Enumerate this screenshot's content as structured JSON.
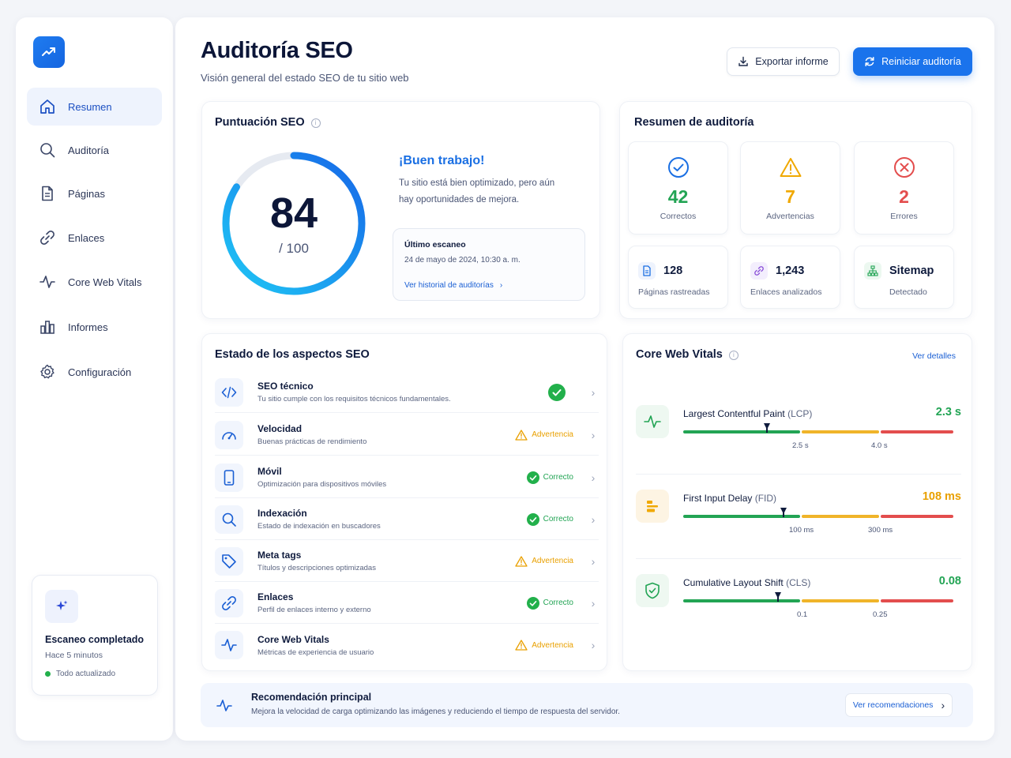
{
  "sidebar": {
    "items": [
      {
        "label": "Resumen",
        "icon": "home-icon",
        "active": true
      },
      {
        "label": "Auditoría",
        "icon": "search-icon"
      },
      {
        "label": "Páginas",
        "icon": "document-icon"
      },
      {
        "label": "Enlaces",
        "icon": "link-icon"
      },
      {
        "label": "Core Web Vitals",
        "icon": "pulse-icon"
      },
      {
        "label": "Informes",
        "icon": "bar-chart-icon"
      },
      {
        "label": "Configuración",
        "icon": "gear-icon"
      }
    ],
    "scan": {
      "title": "Escaneo completado",
      "time": "Hace 5 minutos",
      "status": "Todo actualizado"
    }
  },
  "header": {
    "title": "Auditoría SEO",
    "subtitle": "Visión general del estado SEO de tu sitio web",
    "export_label": "Exportar informe",
    "restart_label": "Reiniciar auditoría"
  },
  "score": {
    "title": "Puntuación SEO",
    "value": "84",
    "max": "/ 100",
    "fraction": 0.84,
    "headline": "¡Buen trabajo!",
    "message": "Tu sitio está bien optimizado, pero aún hay oportunidades de mejora.",
    "last_scan_label": "Último escaneo",
    "last_scan_date": "24 de mayo de 2024, 10:30 a. m.",
    "history_link": "Ver historial de auditorías"
  },
  "summary": {
    "title": "Resumen de auditoría",
    "counts": [
      {
        "value": "42",
        "label": "Correctos",
        "color": "#22a454",
        "icon": "check-circle-icon"
      },
      {
        "value": "7",
        "label": "Advertencias",
        "color": "#f0a800",
        "icon": "warning-icon"
      },
      {
        "value": "2",
        "label": "Errores",
        "color": "#e34d4d",
        "icon": "error-circle-icon"
      }
    ],
    "stats": [
      {
        "value": "128",
        "label": "Páginas rastreadas",
        "icon": "document-icon"
      },
      {
        "value": "1,243",
        "label": "Enlaces analizados",
        "icon": "link-icon"
      },
      {
        "value": "Sitemap",
        "label": "Detectado",
        "icon": "sitemap-icon"
      }
    ]
  },
  "aspects": {
    "title": "Estado de los aspectos SEO",
    "items": [
      {
        "name": "SEO técnico",
        "desc": "Tu sitio cumple con los requisitos técnicos fundamentales.",
        "status": "",
        "type": "ok-badge",
        "icon": "code-icon"
      },
      {
        "name": "Velocidad",
        "desc": "Buenas prácticas de rendimiento",
        "status": "Advertencia",
        "type": "warn",
        "icon": "speedometer-icon"
      },
      {
        "name": "Móvil",
        "desc": "Optimización para dispositivos móviles",
        "status": "Correcto",
        "type": "ok",
        "icon": "mobile-icon"
      },
      {
        "name": "Indexación",
        "desc": "Estado de indexación en buscadores",
        "status": "Correcto",
        "type": "ok",
        "icon": "search-icon"
      },
      {
        "name": "Meta tags",
        "desc": "Títulos y descripciones optimizadas",
        "status": "Advertencia",
        "type": "warn",
        "icon": "tag-icon"
      },
      {
        "name": "Enlaces",
        "desc": "Perfil de enlaces interno y externo",
        "status": "Correcto",
        "type": "ok",
        "icon": "link-icon"
      },
      {
        "name": "Core Web Vitals",
        "desc": "Métricas de experiencia de usuario",
        "status": "Advertencia",
        "type": "warn",
        "icon": "pulse-icon"
      }
    ]
  },
  "cwv": {
    "title": "Core Web Vitals",
    "details_link": "Ver detalles",
    "metrics": [
      {
        "name": "Largest Contentful Paint",
        "abbr": "(LCP)",
        "value": "2.3 s",
        "t1": "2.5 s",
        "t2": "4.0 s",
        "marker": 0.31,
        "icon": "pulse-icon"
      },
      {
        "name": "First Input Delay",
        "abbr": "(FID)",
        "value": "108 ms",
        "t1": "100 ms",
        "t2": "300 ms",
        "marker": 0.37,
        "icon": "stack-icon"
      },
      {
        "name": "Cumulative Layout Shift",
        "abbr": "(CLS)",
        "value": "0.08",
        "t1": "0.1",
        "t2": "0.25",
        "marker": 0.35,
        "icon": "shield-check-icon"
      }
    ]
  },
  "recommendation": {
    "title": "Recomendación principal",
    "desc": "Mejora la velocidad de carga optimizando las imágenes y reduciendo el tiempo de respuesta del servidor.",
    "button": "Ver recomendaciones"
  },
  "colors": {
    "accent": "#1a73ec",
    "ok": "#22a454",
    "warn": "#f0a800",
    "error": "#e34d4d"
  }
}
